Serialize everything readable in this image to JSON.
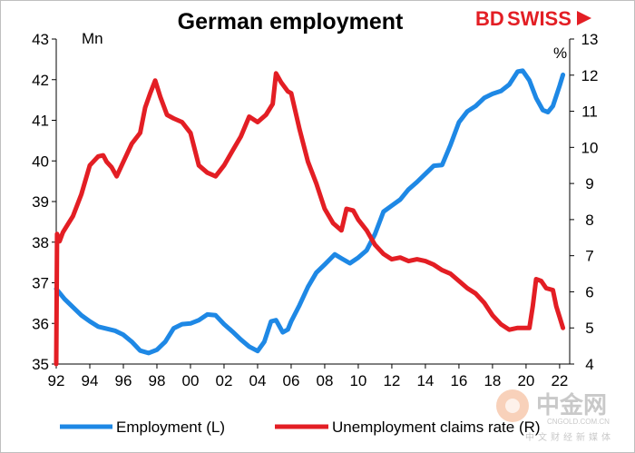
{
  "brand": {
    "part1": "BD",
    "part2": "SWISS",
    "color": "#e31e24"
  },
  "watermark": {
    "chinese": "中金网",
    "url": "CNGOLD.COM.CN",
    "subtitle": "中文财经新媒体"
  },
  "chart_data": {
    "type": "line",
    "title": "German employment",
    "left_axis": {
      "unit": "Mn",
      "min": 35,
      "max": 43,
      "ticks": [
        35,
        36,
        37,
        38,
        39,
        40,
        41,
        42,
        43
      ]
    },
    "right_axis": {
      "unit": "%",
      "min": 4,
      "max": 13,
      "ticks": [
        4,
        5,
        6,
        7,
        8,
        9,
        10,
        11,
        12,
        13
      ]
    },
    "x_axis": {
      "min": 1992,
      "max": 2022.6,
      "ticks": [
        1992,
        1994,
        1996,
        1998,
        2000,
        2002,
        2004,
        2006,
        2008,
        2010,
        2012,
        2014,
        2016,
        2018,
        2020,
        2022
      ],
      "tick_labels": [
        "92",
        "94",
        "96",
        "98",
        "00",
        "02",
        "04",
        "06",
        "08",
        "10",
        "12",
        "14",
        "16",
        "18",
        "20",
        "22"
      ]
    },
    "grid": false,
    "legend_position": "bottom",
    "series": [
      {
        "name": "Employment (L)",
        "axis": "left",
        "color": "#1e88e5",
        "points": [
          [
            1992.0,
            36.85
          ],
          [
            1992.5,
            36.6
          ],
          [
            1993.0,
            36.4
          ],
          [
            1993.5,
            36.2
          ],
          [
            1994.0,
            36.05
          ],
          [
            1994.5,
            35.92
          ],
          [
            1995.0,
            35.87
          ],
          [
            1995.5,
            35.82
          ],
          [
            1996.0,
            35.72
          ],
          [
            1996.5,
            35.55
          ],
          [
            1997.0,
            35.33
          ],
          [
            1997.5,
            35.27
          ],
          [
            1998.0,
            35.35
          ],
          [
            1998.5,
            35.55
          ],
          [
            1999.0,
            35.88
          ],
          [
            1999.5,
            35.98
          ],
          [
            2000.0,
            36.0
          ],
          [
            2000.5,
            36.08
          ],
          [
            2001.0,
            36.22
          ],
          [
            2001.5,
            36.2
          ],
          [
            2002.0,
            35.98
          ],
          [
            2002.5,
            35.8
          ],
          [
            2003.0,
            35.6
          ],
          [
            2003.5,
            35.43
          ],
          [
            2004.0,
            35.32
          ],
          [
            2004.4,
            35.55
          ],
          [
            2004.8,
            36.05
          ],
          [
            2005.1,
            36.08
          ],
          [
            2005.5,
            35.78
          ],
          [
            2005.8,
            35.85
          ],
          [
            2006.0,
            36.05
          ],
          [
            2006.5,
            36.45
          ],
          [
            2007.0,
            36.9
          ],
          [
            2007.5,
            37.25
          ],
          [
            2008.0,
            37.45
          ],
          [
            2008.6,
            37.7
          ],
          [
            2009.0,
            37.6
          ],
          [
            2009.5,
            37.48
          ],
          [
            2010.0,
            37.62
          ],
          [
            2010.5,
            37.8
          ],
          [
            2011.0,
            38.2
          ],
          [
            2011.5,
            38.75
          ],
          [
            2012.0,
            38.9
          ],
          [
            2012.5,
            39.05
          ],
          [
            2013.0,
            39.3
          ],
          [
            2013.5,
            39.48
          ],
          [
            2014.0,
            39.68
          ],
          [
            2014.5,
            39.88
          ],
          [
            2015.0,
            39.9
          ],
          [
            2015.5,
            40.4
          ],
          [
            2016.0,
            40.95
          ],
          [
            2016.5,
            41.22
          ],
          [
            2017.0,
            41.35
          ],
          [
            2017.5,
            41.55
          ],
          [
            2018.0,
            41.65
          ],
          [
            2018.5,
            41.72
          ],
          [
            2019.0,
            41.88
          ],
          [
            2019.5,
            42.2
          ],
          [
            2019.8,
            42.22
          ],
          [
            2020.2,
            41.98
          ],
          [
            2020.6,
            41.55
          ],
          [
            2021.0,
            41.25
          ],
          [
            2021.3,
            41.2
          ],
          [
            2021.6,
            41.35
          ],
          [
            2022.0,
            41.85
          ],
          [
            2022.2,
            42.12
          ]
        ]
      },
      {
        "name": "Unemployment claims rate (R)",
        "axis": "right",
        "color": "#e31e24",
        "points": [
          [
            1992.0,
            4.0
          ],
          [
            1992.05,
            7.6
          ],
          [
            1992.2,
            7.4
          ],
          [
            1992.4,
            7.65
          ],
          [
            1992.6,
            7.8
          ],
          [
            1993.0,
            8.1
          ],
          [
            1993.5,
            8.7
          ],
          [
            1994.0,
            9.5
          ],
          [
            1994.5,
            9.75
          ],
          [
            1994.8,
            9.78
          ],
          [
            1995.0,
            9.6
          ],
          [
            1995.3,
            9.45
          ],
          [
            1995.6,
            9.2
          ],
          [
            1996.0,
            9.6
          ],
          [
            1996.5,
            10.1
          ],
          [
            1997.0,
            10.4
          ],
          [
            1997.3,
            11.1
          ],
          [
            1997.6,
            11.5
          ],
          [
            1997.9,
            11.85
          ],
          [
            1998.2,
            11.4
          ],
          [
            1998.6,
            10.9
          ],
          [
            1999.0,
            10.8
          ],
          [
            1999.5,
            10.7
          ],
          [
            2000.0,
            10.4
          ],
          [
            2000.5,
            9.5
          ],
          [
            2001.0,
            9.3
          ],
          [
            2001.5,
            9.2
          ],
          [
            2002.0,
            9.5
          ],
          [
            2002.5,
            9.9
          ],
          [
            2003.0,
            10.3
          ],
          [
            2003.5,
            10.85
          ],
          [
            2004.0,
            10.7
          ],
          [
            2004.5,
            10.9
          ],
          [
            2004.9,
            11.2
          ],
          [
            2005.1,
            12.05
          ],
          [
            2005.4,
            11.8
          ],
          [
            2005.8,
            11.55
          ],
          [
            2006.0,
            11.5
          ],
          [
            2006.5,
            10.5
          ],
          [
            2007.0,
            9.6
          ],
          [
            2007.5,
            9.0
          ],
          [
            2008.0,
            8.3
          ],
          [
            2008.5,
            7.9
          ],
          [
            2009.0,
            7.7
          ],
          [
            2009.3,
            8.3
          ],
          [
            2009.7,
            8.25
          ],
          [
            2010.0,
            8.0
          ],
          [
            2010.5,
            7.7
          ],
          [
            2011.0,
            7.3
          ],
          [
            2011.5,
            7.05
          ],
          [
            2012.0,
            6.9
          ],
          [
            2012.5,
            6.95
          ],
          [
            2013.0,
            6.85
          ],
          [
            2013.5,
            6.9
          ],
          [
            2014.0,
            6.85
          ],
          [
            2014.5,
            6.75
          ],
          [
            2015.0,
            6.6
          ],
          [
            2015.5,
            6.5
          ],
          [
            2016.0,
            6.3
          ],
          [
            2016.5,
            6.1
          ],
          [
            2017.0,
            5.95
          ],
          [
            2017.5,
            5.7
          ],
          [
            2018.0,
            5.35
          ],
          [
            2018.5,
            5.1
          ],
          [
            2019.0,
            4.95
          ],
          [
            2019.5,
            5.0
          ],
          [
            2020.0,
            5.0
          ],
          [
            2020.2,
            5.0
          ],
          [
            2020.4,
            5.6
          ],
          [
            2020.6,
            6.35
          ],
          [
            2020.9,
            6.3
          ],
          [
            2021.2,
            6.1
          ],
          [
            2021.6,
            6.05
          ],
          [
            2021.8,
            5.6
          ],
          [
            2022.0,
            5.3
          ],
          [
            2022.2,
            5.0
          ]
        ]
      }
    ]
  }
}
